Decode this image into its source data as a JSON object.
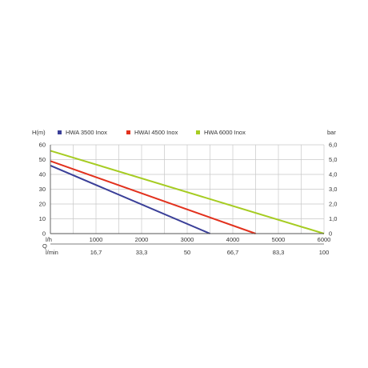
{
  "chart_data": {
    "type": "line",
    "left_axis_label": "H(m)",
    "right_axis_label": "bar",
    "y_ticks": [
      0,
      10,
      20,
      30,
      40,
      50,
      60
    ],
    "right_ticks": [
      "0",
      "1,0",
      "2,0",
      "3,0",
      "4,0",
      "5,0",
      "6,0"
    ],
    "ylim": [
      0,
      60
    ],
    "xlim": [
      0,
      6000
    ],
    "x_row_lh": {
      "label": "l/h",
      "values": [
        1000,
        2000,
        3000,
        4000,
        5000,
        6000
      ],
      "labels": [
        "1000",
        "2000",
        "3000",
        "4000",
        "5000",
        "6000"
      ]
    },
    "q_label": "Q",
    "x_row_lmin": {
      "label": "l/min",
      "labels": [
        "16,7",
        "33,3",
        "50",
        "66,7",
        "83,3",
        "100"
      ]
    },
    "grid": true,
    "legend_position": "top",
    "series": [
      {
        "name": "HWA 3500 Inox",
        "color": "#3a3f98",
        "points": [
          [
            0,
            46
          ],
          [
            3500,
            0
          ]
        ]
      },
      {
        "name": "HWAI 4500 Inox",
        "color": "#e2311d",
        "points": [
          [
            0,
            49
          ],
          [
            4500,
            0
          ]
        ]
      },
      {
        "name": "HWA 6000 Inox",
        "color": "#a6cc22",
        "points": [
          [
            0,
            56
          ],
          [
            6000,
            0
          ]
        ]
      }
    ]
  }
}
